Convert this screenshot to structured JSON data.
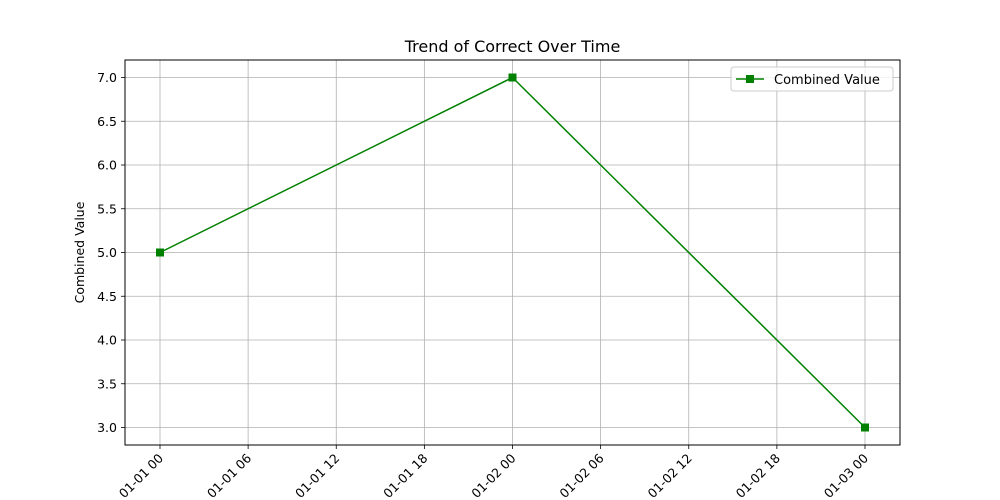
{
  "chart_data": {
    "type": "line",
    "title": "Trend of Correct Over Time",
    "xlabel": "",
    "ylabel": "Combined Value",
    "x_tick_labels": [
      "01-01 00",
      "01-01 06",
      "01-01 12",
      "01-01 18",
      "01-02 00",
      "01-02 06",
      "01-02 12",
      "01-02 18",
      "01-03 00"
    ],
    "y_tick_labels": [
      "3.0",
      "3.5",
      "4.0",
      "4.5",
      "5.0",
      "5.5",
      "6.0",
      "6.5",
      "7.0"
    ],
    "ylim": [
      2.8,
      7.2
    ],
    "grid": true,
    "legend_position": "top-right",
    "series": [
      {
        "name": "Combined Value",
        "color": "#008000",
        "marker": "square",
        "x": [
          "01-01 00",
          "01-02 00",
          "01-03 00"
        ],
        "values": [
          5,
          7,
          3
        ]
      }
    ]
  }
}
